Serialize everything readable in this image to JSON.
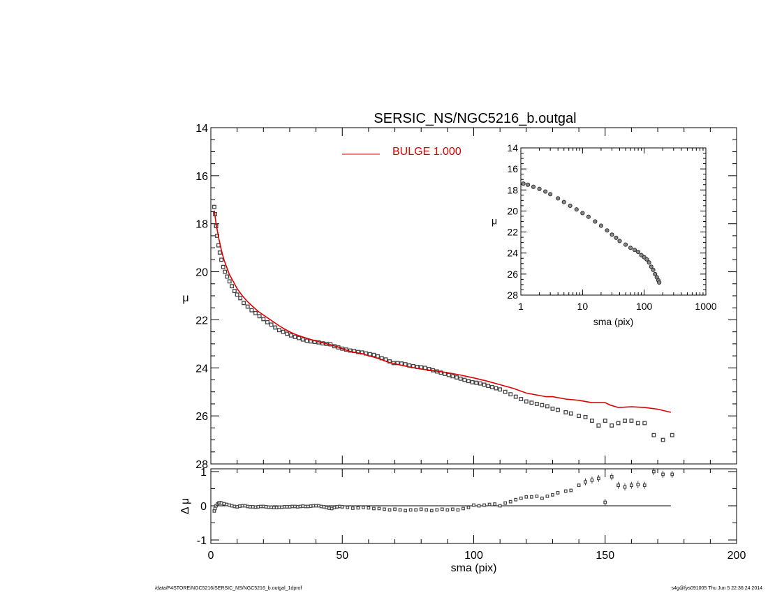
{
  "footer": {
    "left": "/data/P4STORE/NGC5216/SERSIC_NS/NGC5216_b.outgal_1dprof",
    "right": "s4g@fys091005  Thu Jun  5 22:36:24 2014"
  },
  "chart_data": [
    {
      "type": "scatter",
      "panel": "main",
      "title": "SERSIC_NS/NGC5216_b.outgal",
      "xlabel": "",
      "ylabel": "μ",
      "xlim": [
        0,
        200
      ],
      "ylim": [
        28,
        14
      ],
      "y_inverted": true,
      "yticks": [
        "14",
        "16",
        "18",
        "20",
        "22",
        "24",
        "26",
        "28"
      ],
      "legend": {
        "position": "top-center",
        "entries": [
          {
            "label": "BULGE  1.000",
            "color": "#dd0000"
          }
        ]
      },
      "series": [
        {
          "type": "scatter",
          "color": "#444444",
          "x": [
            1.3,
            1.6,
            2.0,
            2.4,
            2.9,
            3.4,
            4.0,
            4.7,
            5.4,
            6.2,
            7.1,
            8.0,
            9.0,
            10.0,
            11.2,
            12.5,
            14.0,
            15.5,
            17.0,
            18.5,
            20.0,
            21.5,
            23.0,
            24.5,
            26.0,
            27.5,
            29.0,
            30.5,
            32.0,
            33.5,
            35.0,
            36.5,
            38.0,
            39.5,
            41.0,
            42.5,
            44.0,
            45.5,
            47.0,
            48.5,
            50.0,
            51.5,
            53.0,
            54.5,
            56.0,
            57.5,
            59.0,
            60.5,
            62.0,
            63.5,
            65.0,
            66.5,
            68.0,
            69.5,
            71.0,
            72.5,
            74.0,
            75.5,
            77.0,
            78.5,
            80.0,
            81.5,
            83.0,
            84.5,
            86.0,
            87.5,
            89.0,
            90.5,
            92.0,
            93.5,
            95.0,
            96.5,
            98.0,
            99.5,
            101.0,
            102.5,
            104.0,
            105.5,
            107.0,
            108.5,
            110.0,
            112.0,
            114.0,
            116.0,
            118.0,
            120.0,
            122.0,
            124.0,
            126.0,
            128.0,
            130.0,
            132.0,
            135.0,
            137.0,
            140.0,
            142.5,
            145.0,
            147.5,
            150.0,
            152.5,
            155.0,
            157.5,
            160.0,
            162.5,
            165.0,
            168.5,
            172.0,
            175.5
          ],
          "y": [
            17.3,
            17.6,
            18.1,
            18.5,
            18.9,
            19.2,
            19.5,
            19.8,
            20.0,
            20.2,
            20.4,
            20.6,
            20.8,
            20.95,
            21.1,
            21.3,
            21.45,
            21.6,
            21.72,
            21.85,
            21.97,
            22.1,
            22.2,
            22.32,
            22.43,
            22.5,
            22.58,
            22.65,
            22.71,
            22.76,
            22.82,
            22.87,
            22.9,
            22.92,
            22.94,
            22.98,
            23.0,
            23.02,
            23.1,
            23.15,
            23.2,
            23.24,
            23.28,
            23.3,
            23.34,
            23.36,
            23.4,
            23.43,
            23.46,
            23.52,
            23.6,
            23.65,
            23.73,
            23.8,
            23.8,
            23.82,
            23.85,
            23.9,
            23.93,
            23.96,
            23.98,
            24.0,
            24.05,
            24.1,
            24.15,
            24.2,
            24.25,
            24.3,
            24.35,
            24.4,
            24.45,
            24.5,
            24.55,
            24.6,
            24.62,
            24.65,
            24.7,
            24.75,
            24.8,
            24.85,
            24.9,
            25.0,
            25.1,
            25.2,
            25.3,
            25.4,
            25.45,
            25.5,
            25.55,
            25.6,
            25.7,
            25.75,
            25.85,
            25.9,
            26.0,
            26.05,
            26.2,
            26.4,
            26.2,
            26.4,
            26.3,
            26.2,
            26.2,
            26.3,
            26.3,
            26.8,
            27.0,
            26.8
          ]
        },
        {
          "type": "line",
          "name": "BULGE  1.000",
          "color": "#dd0000",
          "x": [
            1.3,
            2.0,
            3.0,
            4.0,
            5.0,
            6.0,
            7.0,
            8.0,
            9.0,
            10.0,
            12.0,
            14.0,
            16.0,
            18.0,
            20.0,
            22.0,
            24.0,
            26.0,
            28.0,
            30.0,
            32.0,
            34.0,
            36.0,
            38.0,
            40.0,
            42.0,
            44.0,
            46.0,
            48.0,
            50.0,
            52.0,
            54.0,
            56.0,
            58.0,
            60.0,
            62.0,
            64.0,
            66.0,
            68.0,
            70.0,
            75.0,
            80.0,
            85.0,
            90.0,
            95.0,
            100.0,
            105.0,
            110.0,
            115.0,
            120.0,
            125.0,
            127.5,
            130.0,
            135.0,
            140.0,
            145.0,
            150.0,
            152.0,
            155.0,
            160.0,
            165.0,
            170.0,
            175.0
          ],
          "y": [
            17.45,
            18.0,
            18.6,
            19.1,
            19.5,
            19.8,
            20.1,
            20.3,
            20.5,
            20.7,
            21.0,
            21.25,
            21.45,
            21.65,
            21.8,
            21.95,
            22.1,
            22.25,
            22.38,
            22.5,
            22.6,
            22.68,
            22.75,
            22.82,
            22.88,
            22.94,
            23.0,
            23.05,
            23.12,
            23.2,
            23.28,
            23.34,
            23.38,
            23.42,
            23.5,
            23.55,
            23.62,
            23.7,
            23.78,
            23.83,
            23.95,
            24.05,
            24.12,
            24.2,
            24.3,
            24.42,
            24.55,
            24.7,
            24.85,
            25.05,
            25.15,
            25.2,
            25.2,
            25.3,
            25.35,
            25.45,
            25.45,
            25.55,
            25.65,
            25.62,
            25.65,
            25.72,
            25.85
          ]
        }
      ]
    },
    {
      "type": "scatter",
      "panel": "inset",
      "xlabel": "sma (pix)",
      "ylabel": "μ",
      "x_scale": "log",
      "xlim": [
        1,
        1000
      ],
      "ylim": [
        28,
        14
      ],
      "y_inverted": true,
      "xticks": [
        "1",
        "10",
        "100",
        "1000"
      ],
      "yticks": [
        "14",
        "16",
        "18",
        "20",
        "22",
        "24",
        "26",
        "28"
      ],
      "series": [
        {
          "type": "scatter",
          "color": "#444444",
          "x": [
            1.1,
            1.3,
            1.6,
            2.0,
            2.5,
            3.0,
            4.0,
            5.0,
            6.3,
            8.0,
            10.0,
            12.5,
            16.0,
            20.0,
            25.0,
            30.0,
            35.0,
            40.0,
            50.0,
            60.0,
            70.0,
            80.0,
            90.0,
            100.0,
            110.0,
            120.0,
            130.0,
            140.0,
            150.0,
            160.0,
            170.0,
            175.0
          ],
          "y": [
            17.4,
            17.5,
            17.7,
            17.9,
            18.15,
            18.4,
            18.8,
            19.15,
            19.5,
            19.85,
            20.2,
            20.55,
            21.0,
            21.4,
            21.85,
            22.25,
            22.55,
            22.85,
            23.2,
            23.5,
            23.7,
            23.9,
            24.2,
            24.4,
            24.6,
            24.9,
            25.3,
            25.6,
            26.0,
            26.3,
            26.6,
            26.8
          ]
        }
      ]
    },
    {
      "type": "scatter",
      "panel": "residual",
      "xlabel": "sma (pix)",
      "ylabel": "Δ μ",
      "xlim": [
        0,
        200
      ],
      "ylim": [
        -1,
        1
      ],
      "xticks": [
        "0",
        "50",
        "100",
        "150",
        "200"
      ],
      "yticks": [
        "-1",
        "0",
        "1"
      ],
      "reference_line": {
        "y": 0,
        "x_end": 175
      },
      "series": [
        {
          "type": "scatter",
          "color": "#444444",
          "x": [
            1.3,
            1.6,
            2.0,
            2.5,
            3.0,
            3.5,
            4.0,
            5.0,
            6.0,
            7.0,
            8.0,
            9.0,
            10.0,
            11.0,
            12.0,
            13.0,
            14.0,
            15.0,
            16.0,
            17.0,
            18.0,
            19.0,
            20.0,
            21.0,
            22.0,
            23.0,
            24.0,
            25.0,
            26.0,
            27.0,
            28.0,
            29.0,
            30.0,
            31.0,
            32.0,
            33.0,
            34.0,
            35.0,
            36.0,
            37.0,
            38.0,
            39.0,
            40.0,
            41.0,
            42.0,
            43.0,
            44.0,
            45.0,
            46.0,
            47.0,
            48.0,
            49.0,
            50.0,
            52.0,
            54.0,
            56.0,
            58.0,
            60.0,
            62.0,
            64.0,
            66.0,
            68.0,
            70.0,
            72.0,
            74.0,
            76.0,
            78.0,
            80.0,
            82.0,
            84.0,
            86.0,
            88.0,
            90.0,
            92.0,
            94.0,
            96.0,
            98.0,
            100.0,
            102.0,
            104.0,
            106.0,
            108.0,
            110.0,
            112.0,
            114.0,
            116.0,
            118.0,
            120.0,
            122.0,
            124.0,
            126.0,
            128.0,
            130.0,
            132.0,
            135.0,
            137.0,
            140.0,
            142.5,
            145.0,
            147.5,
            150.0,
            152.5,
            155.0,
            157.5,
            160.0,
            162.5,
            165.0,
            168.5,
            172.0,
            175.5
          ],
          "y": [
            -0.15,
            -0.08,
            0.0,
            0.05,
            0.08,
            0.09,
            0.08,
            0.06,
            0.04,
            0.02,
            0.0,
            -0.02,
            -0.03,
            -0.01,
            0.0,
            0.0,
            -0.02,
            -0.03,
            -0.03,
            -0.04,
            -0.03,
            -0.02,
            -0.02,
            -0.03,
            -0.04,
            -0.04,
            -0.05,
            -0.05,
            -0.04,
            -0.04,
            -0.03,
            -0.03,
            -0.03,
            -0.02,
            -0.02,
            -0.03,
            -0.02,
            -0.01,
            -0.02,
            -0.02,
            -0.01,
            0.0,
            0.0,
            0.0,
            -0.02,
            -0.03,
            -0.05,
            -0.07,
            -0.08,
            -0.05,
            -0.03,
            -0.02,
            -0.03,
            -0.05,
            -0.07,
            -0.06,
            -0.05,
            -0.06,
            -0.08,
            -0.08,
            -0.1,
            -0.12,
            -0.1,
            -0.12,
            -0.14,
            -0.12,
            -0.12,
            -0.1,
            -0.12,
            -0.14,
            -0.12,
            -0.1,
            -0.12,
            -0.1,
            -0.12,
            -0.08,
            -0.05,
            0.02,
            0.0,
            0.02,
            0.04,
            0.05,
            0.0,
            0.08,
            0.12,
            0.18,
            0.22,
            0.26,
            0.26,
            0.28,
            0.22,
            0.28,
            0.32,
            0.38,
            0.43,
            0.45,
            0.6,
            0.7,
            0.75,
            0.8,
            0.1,
            0.85,
            0.6,
            0.55,
            0.6,
            0.62,
            0.6,
            1.0,
            0.92,
            0.92
          ]
        }
      ]
    }
  ]
}
